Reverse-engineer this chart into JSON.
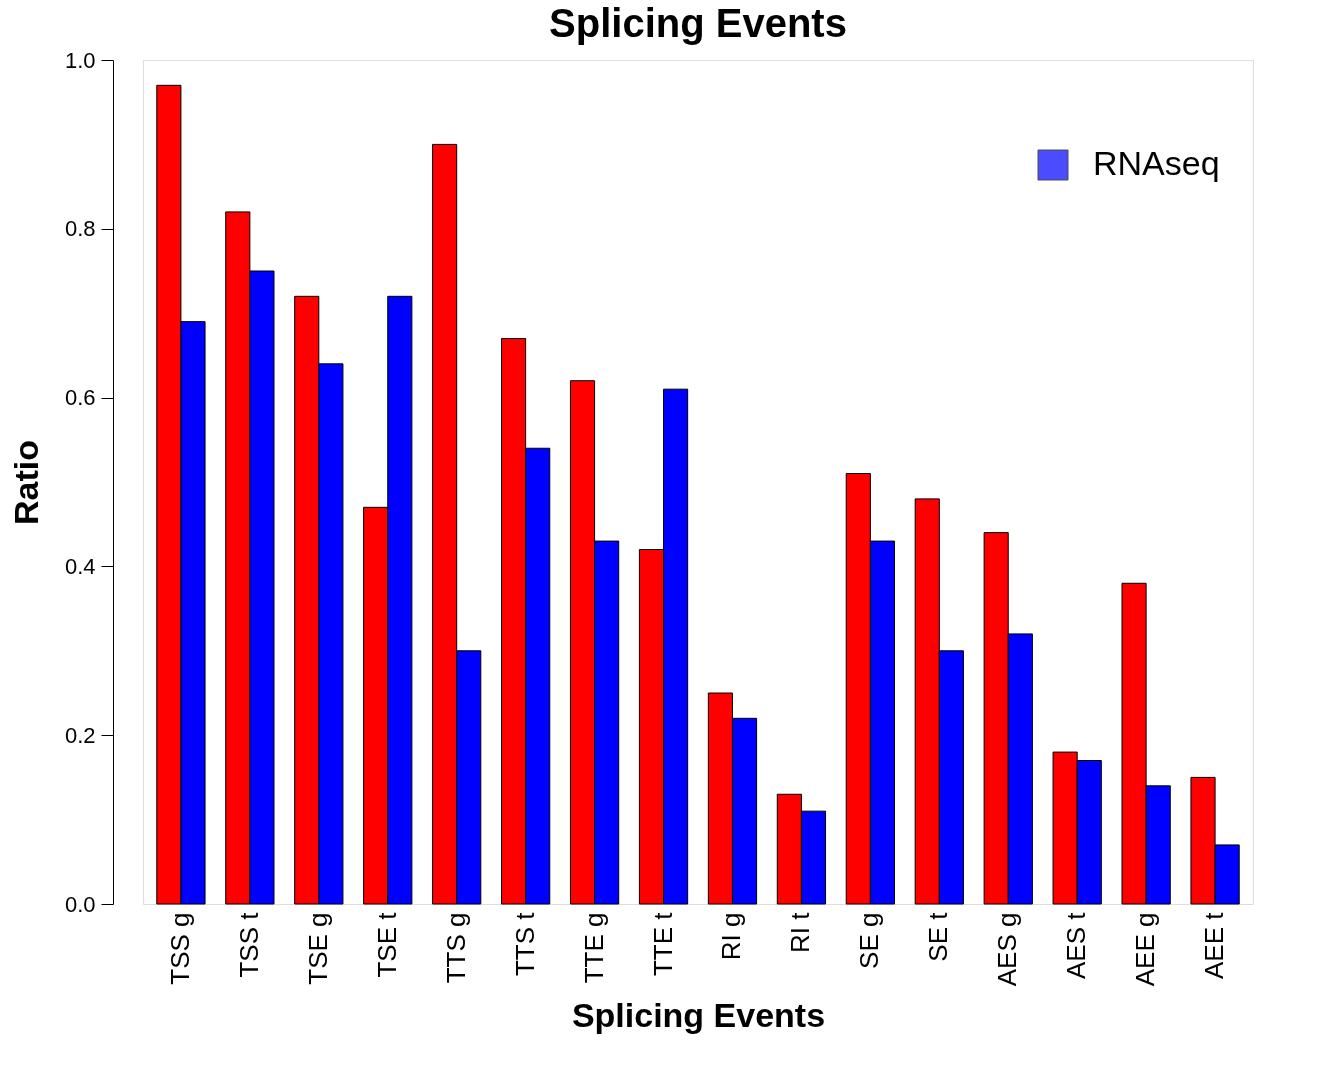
{
  "chart_data": {
    "type": "bar",
    "title": "Splicing Events",
    "xlabel": "Splicing Events",
    "ylabel": "Ratio",
    "categories": [
      "TSS g",
      "TSS t",
      "TSE g",
      "TSE t",
      "TTS g",
      "TTS t",
      "TTE g",
      "TTE t",
      "RI g",
      "RI t",
      "SE g",
      "SE t",
      "AES g",
      "AES t",
      "AEE g",
      "AEE t"
    ],
    "series": [
      {
        "color": "#ff0000",
        "values": [
          0.97,
          0.82,
          0.72,
          0.47,
          0.9,
          0.67,
          0.62,
          0.42,
          0.25,
          0.13,
          0.51,
          0.48,
          0.44,
          0.18,
          0.38,
          0.15
        ]
      },
      {
        "name": "RNAseq",
        "color": "#0000ff",
        "values": [
          0.69,
          0.75,
          0.64,
          0.72,
          0.3,
          0.54,
          0.43,
          0.61,
          0.22,
          0.11,
          0.43,
          0.3,
          0.32,
          0.17,
          0.14,
          0.07
        ]
      }
    ],
    "ylim": [
      0,
      1
    ],
    "yticks": [
      {
        "value": 0,
        "label": "0.0"
      },
      {
        "value": 0.2,
        "label": "0.2"
      },
      {
        "value": 0.4,
        "label": "0.4"
      },
      {
        "value": 0.6,
        "label": "0.6"
      },
      {
        "value": 0.8,
        "label": "0.8"
      },
      {
        "value": 1,
        "label": "1.0"
      }
    ],
    "grid": false,
    "legend": "top right"
  }
}
